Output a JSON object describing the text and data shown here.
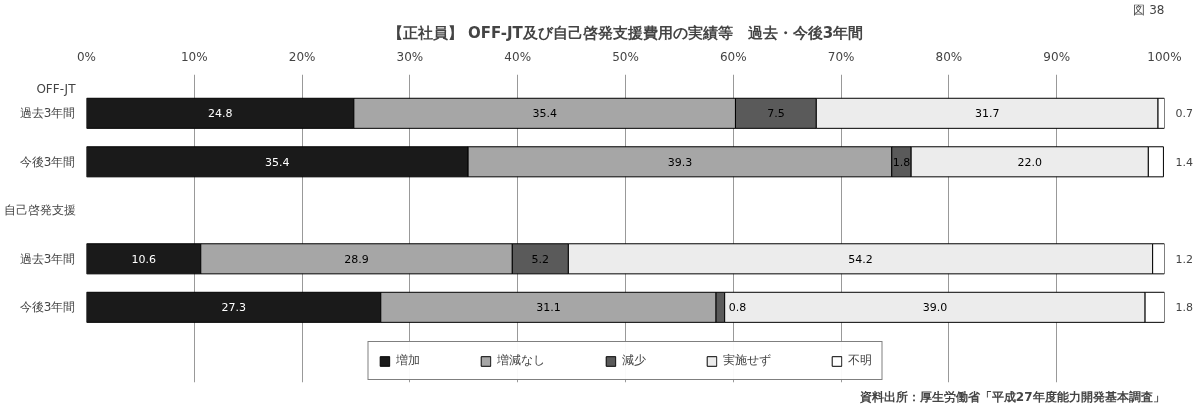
{
  "chart_data": {
    "type": "bar",
    "orientation": "horizontal",
    "stacked": true,
    "title": "【正社員】 OFF-JT及び自己啓発支援費用の実績等　過去・今後3年間",
    "categories": [
      "過去3年間",
      "今後3年間",
      null,
      "過去3年間",
      "今後3年間"
    ],
    "series": [
      {
        "name": "増加",
        "color": "#1a1a1a",
        "values": [
          24.8,
          35.4,
          null,
          10.6,
          27.3
        ],
        "value_labels": [
          "24.8",
          "35.4",
          null,
          "10.6",
          "27.3"
        ]
      },
      {
        "name": "増減なし",
        "color": "#a6a6a6",
        "values": [
          35.4,
          39.3,
          null,
          28.9,
          31.1
        ],
        "value_labels": [
          "35.4",
          "39.3",
          null,
          "28.9",
          "31.1"
        ]
      },
      {
        "name": "減少",
        "color": "#5a5a5a",
        "values": [
          7.5,
          1.8,
          null,
          5.2,
          0.8
        ],
        "value_labels": [
          "7.5",
          "1.8",
          null,
          "5.2",
          "0.8"
        ]
      },
      {
        "name": "実施せず",
        "color": "#ececec",
        "values": [
          31.7,
          22.0,
          null,
          54.2,
          39.0
        ],
        "value_labels": [
          "31.7",
          "22.0",
          null,
          "54.2",
          "39.0"
        ]
      },
      {
        "name": "不明",
        "color": "#ffffff",
        "values": [
          0.7,
          1.4,
          null,
          1.2,
          1.8
        ],
        "value_labels": [
          "0.7",
          "1.4",
          null,
          "1.2",
          "1.8"
        ]
      }
    ],
    "xlim": [
      0,
      100
    ],
    "xticks": [
      {
        "value": 0,
        "label": "0%"
      },
      {
        "value": 10,
        "label": "10%"
      },
      {
        "value": 20,
        "label": "20%"
      },
      {
        "value": 30,
        "label": "30%"
      },
      {
        "value": 40,
        "label": "40%"
      },
      {
        "value": 50,
        "label": "50%"
      },
      {
        "value": 60,
        "label": "60%"
      },
      {
        "value": 70,
        "label": "70%"
      },
      {
        "value": 80,
        "label": "80%"
      },
      {
        "value": 90,
        "label": "90%"
      },
      {
        "value": 100,
        "label": "100%"
      }
    ],
    "grid": "x",
    "legend": "bottom",
    "annotations": [
      "図 38",
      "OFF-JT",
      "自己啓発支援",
      "資料出所：厚生労働省「平成27年度能力開発基本調査」"
    ]
  }
}
